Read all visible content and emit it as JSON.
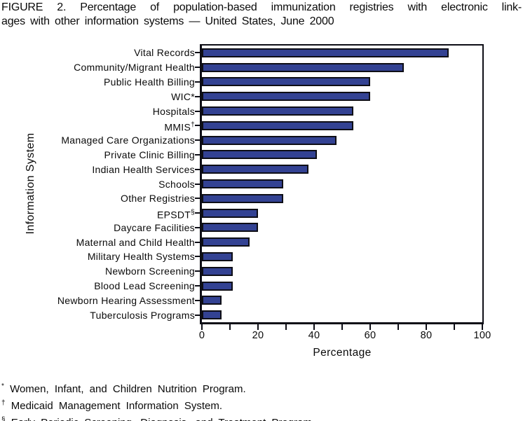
{
  "figure": {
    "title_line1": "FIGURE 2. Percentage of population-based immunization registries with electronic link-",
    "title_line2": "ages with other information systems — United States, June 2000"
  },
  "chart_data": {
    "type": "bar",
    "orientation": "horizontal",
    "title": "Percentage of population-based immunization registries with electronic linkages with other information systems — United States, June 2000",
    "xlabel": "Percentage",
    "ylabel": "Information System",
    "xlim": [
      0,
      100
    ],
    "x_major_ticks": [
      0,
      20,
      40,
      60,
      80,
      100
    ],
    "x_minor_tick_step": 10,
    "grid": "off",
    "legend": "none",
    "bar_color": "#334293",
    "bar_border_color": "#0e0e16",
    "rows": [
      {
        "label": "Vital Records",
        "sup": "",
        "value": 88
      },
      {
        "label": "Community/Migrant Health",
        "sup": "",
        "value": 72
      },
      {
        "label": "Public Health Billing",
        "sup": "",
        "value": 60
      },
      {
        "label": "WIC*",
        "sup": "",
        "value": 60
      },
      {
        "label": "Hospitals",
        "sup": "",
        "value": 54
      },
      {
        "label": "MMIS",
        "sup": "†",
        "value": 54
      },
      {
        "label": "Managed Care Organizations",
        "sup": "",
        "value": 48
      },
      {
        "label": "Private Clinic Billing",
        "sup": "",
        "value": 41
      },
      {
        "label": "Indian Health Services",
        "sup": "",
        "value": 38
      },
      {
        "label": "Schools",
        "sup": "",
        "value": 29
      },
      {
        "label": "Other Registries",
        "sup": "",
        "value": 29
      },
      {
        "label": "EPSDT",
        "sup": "§",
        "value": 20
      },
      {
        "label": "Daycare Facilities",
        "sup": "",
        "value": 20
      },
      {
        "label": "Maternal and Child Health",
        "sup": "",
        "value": 17
      },
      {
        "label": "Military Health Systems",
        "sup": "",
        "value": 11
      },
      {
        "label": "Newborn Screening",
        "sup": "",
        "value": 11
      },
      {
        "label": "Blood Lead Screening",
        "sup": "",
        "value": 11
      },
      {
        "label": "Newborn Hearing Assessment",
        "sup": "",
        "value": 7
      },
      {
        "label": "Tuberculosis Programs",
        "sup": "",
        "value": 7
      }
    ]
  },
  "footnotes": [
    {
      "symbol": "*",
      "text": "Women, Infant, and Children Nutrition Program."
    },
    {
      "symbol": "†",
      "text": "Medicaid Management Information System."
    },
    {
      "symbol": "§",
      "text": "Early Periodic Screening, Diagnosis, and Treatment Program."
    }
  ]
}
